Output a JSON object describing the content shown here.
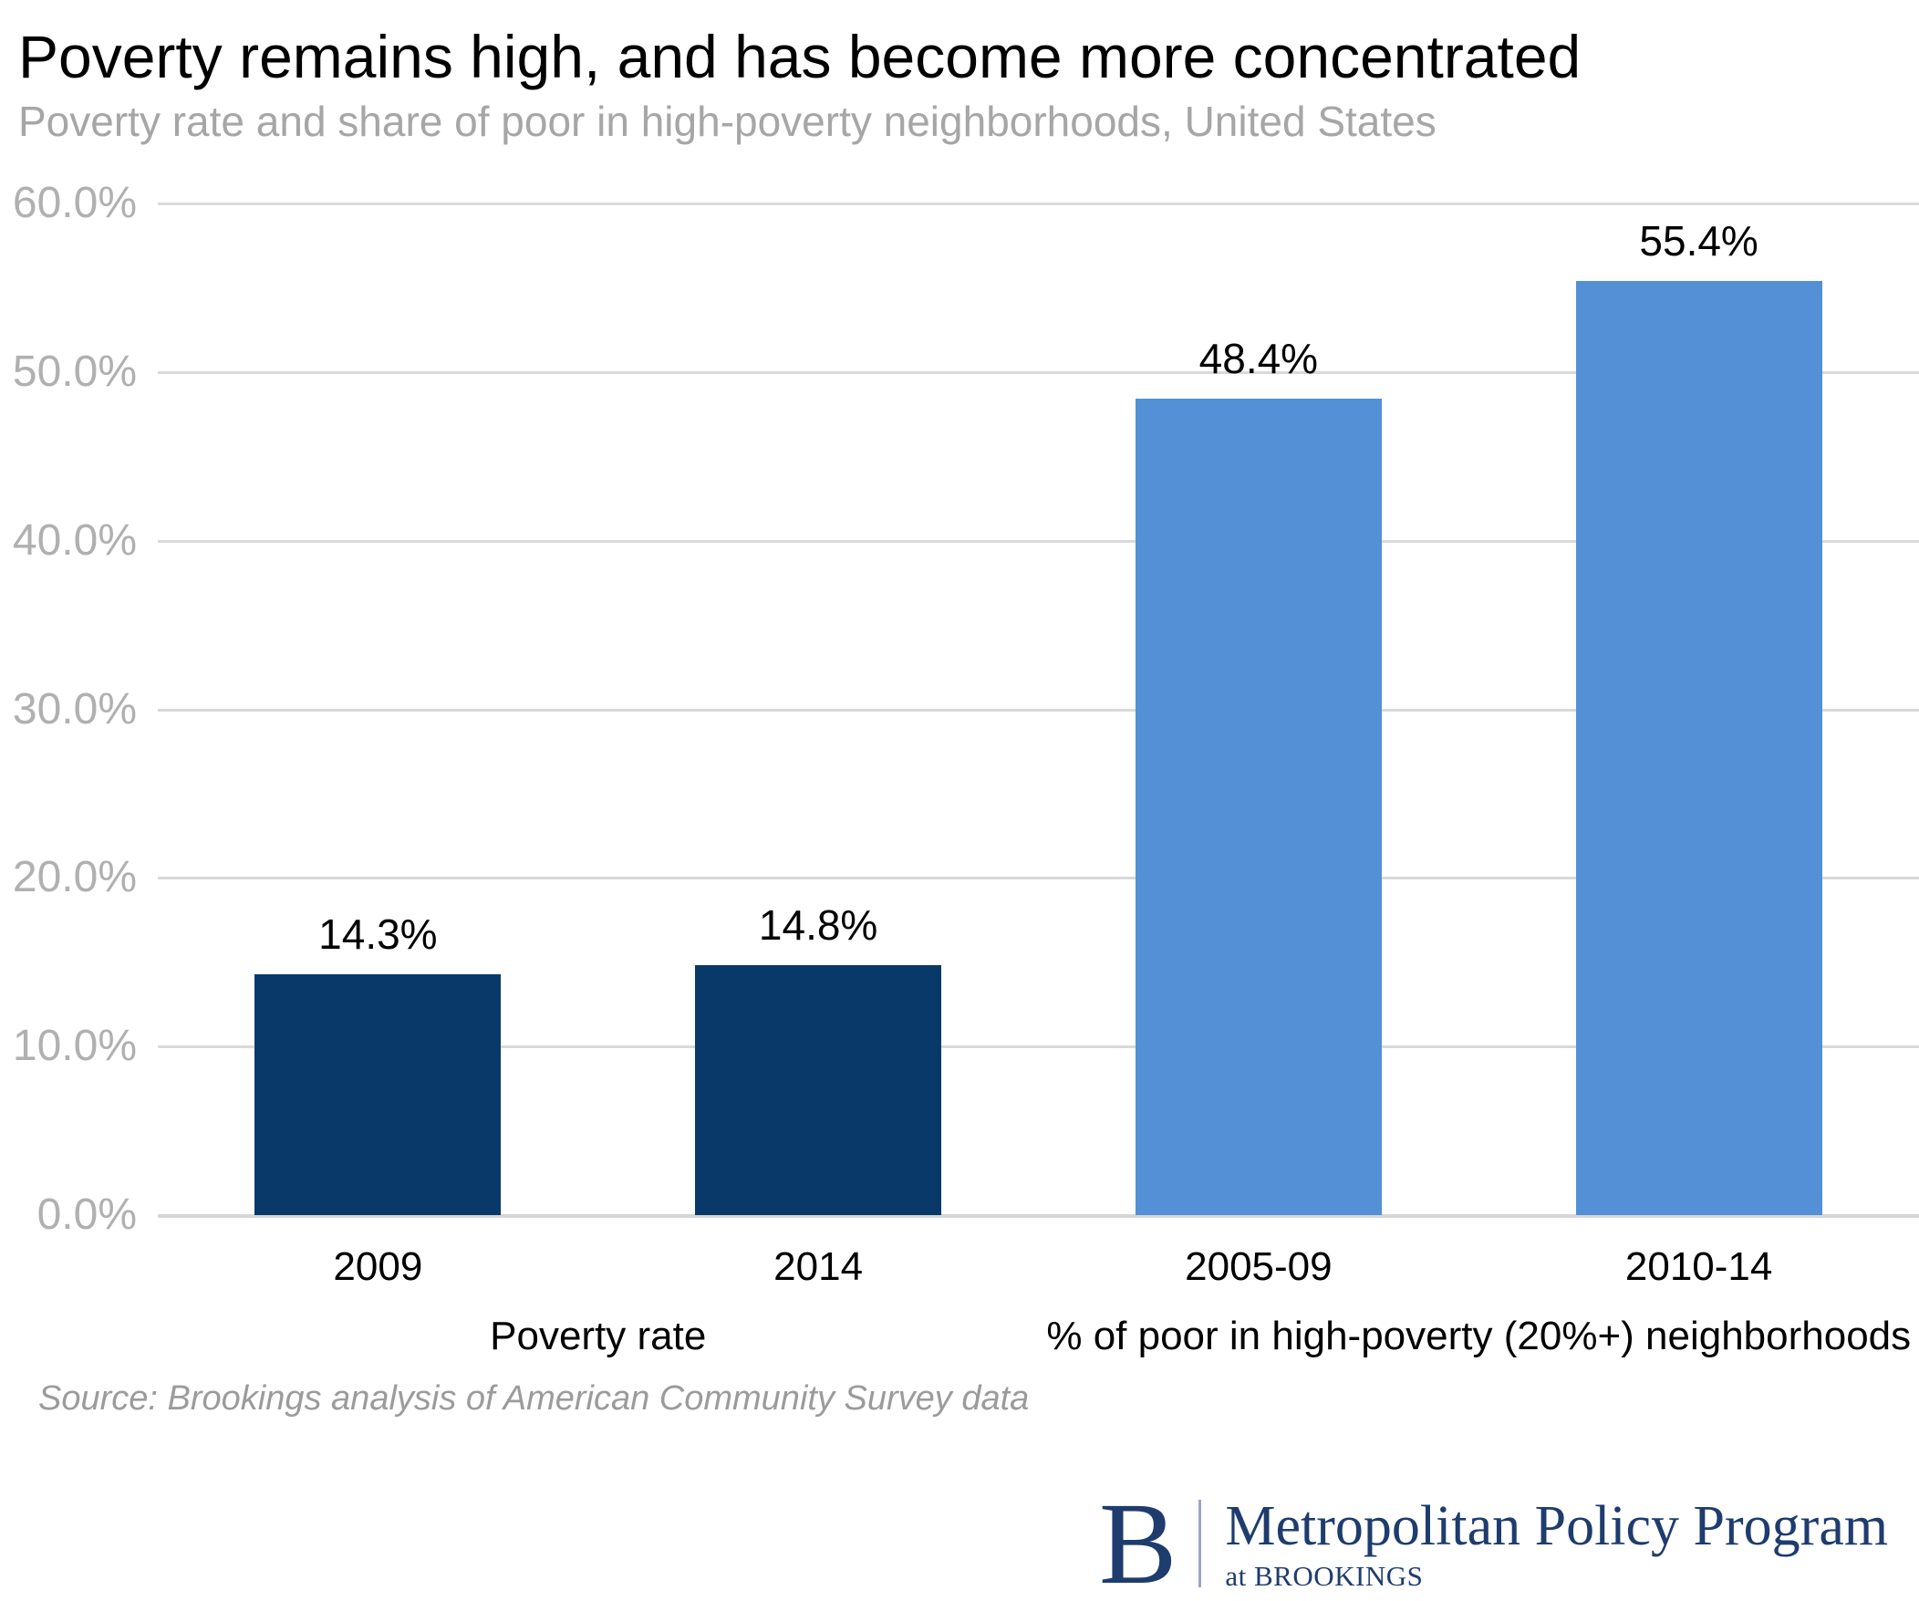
{
  "header": {
    "title": "Poverty remains high, and has become more concentrated",
    "subtitle": "Poverty rate and share of poor in high-poverty neighborhoods, United States"
  },
  "chart_data": {
    "type": "bar",
    "title": "Poverty remains high, and has become more concentrated",
    "subtitle": "Poverty rate and share of poor in high-poverty neighborhoods, United States",
    "categories": [
      "2009",
      "2014",
      "2005-09",
      "2010-14"
    ],
    "values": [
      14.3,
      14.8,
      48.4,
      55.4
    ],
    "value_labels": [
      "14.3%",
      "14.8%",
      "48.4%",
      "55.4%"
    ],
    "bar_colors": [
      "#083968",
      "#083968",
      "#5390d5",
      "#5390d5"
    ],
    "group_labels": [
      {
        "label": "Poverty rate",
        "span": [
          0,
          1
        ]
      },
      {
        "label": "% of poor in high-poverty (20%+) neighborhoods",
        "span": [
          2,
          3
        ]
      }
    ],
    "xlabel": "",
    "ylabel": "",
    "ylim": [
      0,
      60
    ],
    "ytick_step": 10,
    "ytick_labels": [
      "0.0%",
      "10.0%",
      "20.0%",
      "30.0%",
      "40.0%",
      "50.0%",
      "60.0%"
    ],
    "grid": true,
    "legend_position": "none",
    "colors": {
      "dark_bar": "#083968",
      "light_bar": "#5390d5",
      "gridline": "#d9d9d9",
      "axis_label": "#b0b0b0"
    }
  },
  "source": {
    "text": "Source: Brookings analysis of American Community Survey data"
  },
  "logo": {
    "monogram": "B",
    "program": "Metropolitan Policy Program",
    "sub": "at BROOKINGS",
    "color": "#1e3c6e"
  }
}
